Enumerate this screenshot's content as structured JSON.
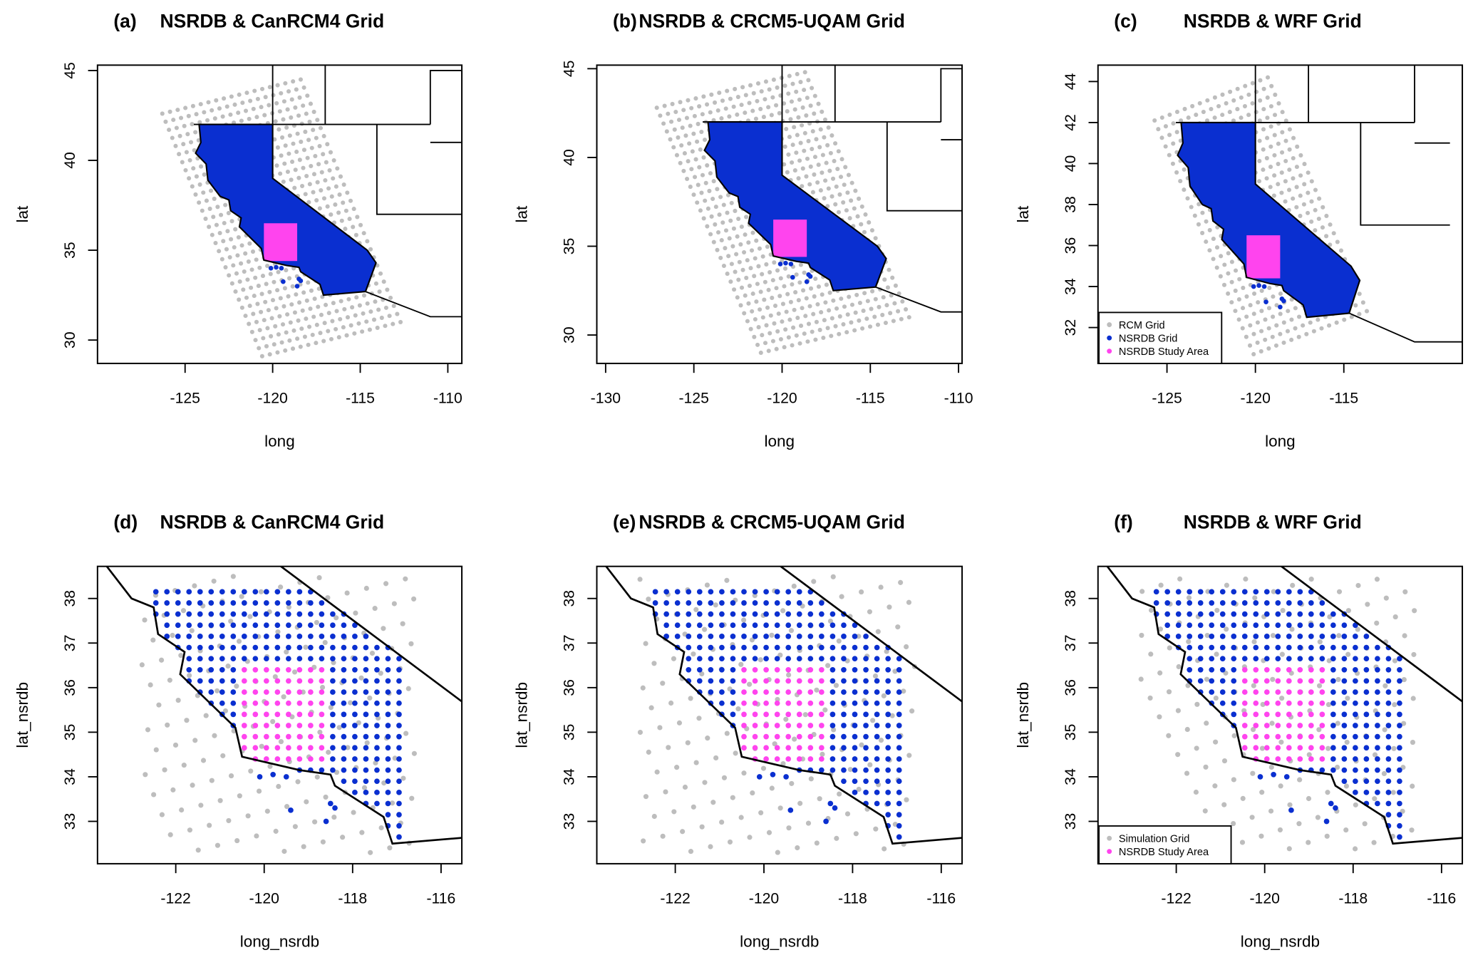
{
  "colors": {
    "rcm": "#bdbdbd",
    "nsrdb": "#0a2fd0",
    "study": "#ff44ee",
    "border": "#000000"
  },
  "chart_data": [
    {
      "type": "map",
      "panel": "(a)",
      "title": "NSRDB & CanRCM4 Grid",
      "xlabel": "long",
      "ylabel": "lat",
      "xticks": [
        -125,
        -120,
        -115,
        -110
      ],
      "yticks": [
        30,
        35,
        40,
        45
      ],
      "xlim": [
        -130,
        -109.2
      ],
      "ylim": [
        28.7,
        45.3
      ],
      "zoom": false,
      "rcm_grid": {
        "corner": [
          -120.6,
          29.1
        ],
        "u": [
          7.9,
          1.9
        ],
        "v": [
          -5.7,
          13.5
        ],
        "nu": 18,
        "nv": 30
      },
      "legend": null
    },
    {
      "type": "map",
      "panel": "(b)",
      "title": "NSRDB & CRCM5-UQAM Grid",
      "xlabel": "long",
      "ylabel": "lat",
      "xticks": [
        -130,
        -125,
        -120,
        -115,
        -110
      ],
      "yticks": [
        30,
        35,
        40,
        45
      ],
      "xlim": [
        -130.5,
        -109.8
      ],
      "ylim": [
        28.4,
        45.2
      ],
      "zoom": false,
      "rcm_grid": {
        "corner": [
          -121.2,
          29.0
        ],
        "u": [
          8.4,
          2.0
        ],
        "v": [
          -5.9,
          13.8
        ],
        "nu": 19,
        "nv": 31
      },
      "legend": null
    },
    {
      "type": "map",
      "panel": "(c)",
      "title": "NSRDB & WRF Grid",
      "xlabel": "long",
      "ylabel": "lat",
      "xticks": [
        -125,
        -120,
        -115
      ],
      "yticks": [
        32,
        34,
        36,
        38,
        40,
        42,
        44
      ],
      "xlim": [
        -128.9,
        -108.3
      ],
      "ylim": [
        30.25,
        44.8
      ],
      "zoom": false,
      "rcm_grid": {
        "corner": [
          -120.1,
          30.7
        ],
        "u": [
          6.4,
          2.1
        ],
        "v": [
          -5.6,
          11.4
        ],
        "nu": 15,
        "nv": 27
      },
      "legend": {
        "position": "bottom-left",
        "items": [
          {
            "label": "RCM Grid",
            "color": "#bdbdbd"
          },
          {
            "label": "NSRDB Grid",
            "color": "#0a2fd0"
          },
          {
            "label": "NSRDB Study Area",
            "color": "#ff44ee"
          }
        ]
      }
    },
    {
      "type": "map",
      "panel": "(d)",
      "title": "NSRDB & CanRCM4 Grid",
      "xlabel": "long_nsrdb",
      "ylabel": "lat_nsrdb",
      "xticks": [
        -122,
        -120,
        -118,
        -116
      ],
      "yticks": [
        33,
        34,
        35,
        36,
        37,
        38
      ],
      "xlim": [
        -123.77,
        -115.53
      ],
      "ylim": [
        32.05,
        38.72
      ],
      "zoom": true,
      "rcm_grid": {
        "corner": [
          -120.6,
          29.1
        ],
        "u": [
          7.9,
          1.9
        ],
        "v": [
          -5.7,
          13.5
        ],
        "nu": 18,
        "nv": 30
      },
      "legend": null
    },
    {
      "type": "map",
      "panel": "(e)",
      "title": "NSRDB & CRCM5-UQAM Grid",
      "xlabel": "long_nsrdb",
      "ylabel": "lat_nsrdb",
      "xticks": [
        -122,
        -120,
        -118,
        -116
      ],
      "yticks": [
        33,
        34,
        35,
        36,
        37,
        38
      ],
      "xlim": [
        -123.77,
        -115.53
      ],
      "ylim": [
        32.05,
        38.72
      ],
      "zoom": true,
      "rcm_grid": {
        "corner": [
          -121.2,
          29.0
        ],
        "u": [
          8.4,
          2.0
        ],
        "v": [
          -5.9,
          13.8
        ],
        "nu": 19,
        "nv": 31
      },
      "legend": null
    },
    {
      "type": "map",
      "panel": "(f)",
      "title": "NSRDB & WRF Grid",
      "xlabel": "long_nsrdb",
      "ylabel": "lat_nsrdb",
      "xticks": [
        -122,
        -120,
        -118,
        -116
      ],
      "yticks": [
        33,
        34,
        35,
        36,
        37,
        38
      ],
      "xlim": [
        -123.77,
        -115.53
      ],
      "ylim": [
        32.05,
        38.72
      ],
      "zoom": true,
      "rcm_grid": {
        "corner": [
          -120.1,
          30.7
        ],
        "u": [
          6.4,
          2.1
        ],
        "v": [
          -5.6,
          11.4
        ],
        "nu": 15,
        "nv": 27
      },
      "legend": {
        "position": "bottom-left",
        "items": [
          {
            "label": "Simulation Grid",
            "color": "#bdbdbd"
          },
          {
            "label": "NSRDB Study Area",
            "color": "#ff44ee"
          }
        ]
      }
    }
  ],
  "study_area": {
    "lon": [
      -120.5,
      -118.6
    ],
    "lat": [
      34.4,
      36.5
    ]
  },
  "nsrdb_spacing_deg": 0.25
}
